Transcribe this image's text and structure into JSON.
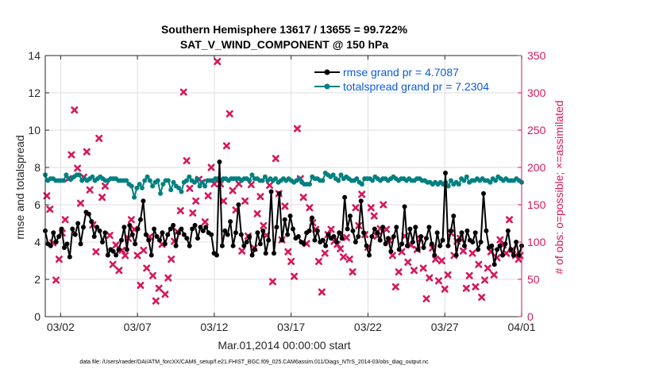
{
  "chart_data": {
    "type": "line",
    "title_line1": "Southern Hemisphere 13617 / 13655 = 99.722%",
    "title_line2": "SAT_V_WIND_COMPONENT @ 150 hPa",
    "xlabel": "Mar.01,2014 00:00:00 start",
    "ylabel": "rmse and totalspread",
    "y2label": "# of obs: o=possible; ×=assimilated",
    "footer": "data file: /Users/raeder/DAI/ATM_forcXX/CAM6_setup/f.e21.FHIST_BGC.f09_025.CAM6assim.011/Diags_NTrS_2014-03/obs_diag_output.nc",
    "xlim": [
      1,
      32
    ],
    "ylim": [
      0,
      14
    ],
    "y2lim": [
      0,
      350
    ],
    "x_ticks": [
      {
        "x": 2,
        "label": "03/02"
      },
      {
        "x": 7,
        "label": "03/07"
      },
      {
        "x": 12,
        "label": "03/12"
      },
      {
        "x": 17,
        "label": "03/17"
      },
      {
        "x": 22,
        "label": "03/22"
      },
      {
        "x": 27,
        "label": "03/27"
      },
      {
        "x": 32,
        "label": "04/01"
      }
    ],
    "y_ticks": [
      0,
      2,
      4,
      6,
      8,
      10,
      12,
      14
    ],
    "y2_ticks": [
      0,
      50,
      100,
      150,
      200,
      250,
      300,
      350
    ],
    "colors": {
      "rmse": "#000000",
      "spread": "#008080",
      "obs": "#d6175c",
      "legend_text": "#0b5bdc",
      "grid": "#dedede"
    },
    "legend": {
      "placement": "top-right",
      "entries": [
        {
          "name": "rmse grand pr = 4.7087",
          "color": "#000000"
        },
        {
          "name": "totalspread grand pr = 7.2304",
          "color": "#008080"
        }
      ]
    },
    "series": [
      {
        "name": "rmse",
        "values": [
          4.6,
          3.9,
          3.8,
          4.5,
          4.0,
          4.3,
          4.7,
          3.7,
          3.9,
          3.2,
          4.7,
          4.4,
          5.0,
          3.9,
          4.8,
          5.6,
          5.5,
          5.1,
          4.3,
          4.8,
          4.6,
          4.0,
          4.5,
          3.3,
          3.6,
          3.5,
          3.3,
          3.6,
          4.1,
          4.8,
          3.6,
          4.9,
          4.4,
          3.9,
          4.7,
          5.2,
          6.2,
          4.4,
          4.1,
          3.3,
          4.7,
          4.3,
          4.1,
          4.5,
          3.9,
          4.4,
          4.7,
          4.9,
          3.8,
          4.5,
          4.7,
          4.4,
          4.2,
          3.8,
          4.7,
          4.9,
          4.2,
          4.8,
          4.6,
          4.8,
          4.5,
          4.4,
          3.4,
          3.3,
          8.3,
          3.8,
          4.6,
          4.4,
          5.1,
          3.8,
          4.5,
          6.0,
          4.4,
          3.8,
          4.0,
          4.3,
          3.3,
          3.6,
          4.5,
          3.9,
          4.6,
          3.4,
          4.1,
          6.7,
          3.4,
          4.8,
          6.6,
          4.1,
          5.2,
          4.4,
          5.4,
          4.7,
          4.2,
          4.3,
          4.0,
          3.9,
          4.5,
          4.6,
          5.3,
          4.1,
          4.6,
          4.0,
          4.1,
          3.8,
          4.4,
          4.2,
          4.3,
          4.0,
          4.5,
          4.2,
          6.4,
          4.7,
          5.4,
          4.6,
          4.0,
          4.3,
          6.2,
          4.5,
          3.8,
          3.3,
          4.3,
          4.7,
          4.5,
          4.1,
          4.8,
          3.9,
          4.2,
          3.5,
          4.3,
          4.8,
          3.6,
          3.9,
          5.9,
          3.8,
          4.7,
          4.0,
          4.8,
          3.6,
          4.3,
          3.7,
          4.2,
          4.8,
          3.9,
          3.3,
          4.5,
          3.8,
          4.1,
          7.7,
          3.8,
          4.6,
          5.4,
          3.3,
          4.1,
          4.5,
          3.8,
          4.6,
          4.1,
          4.0,
          4.5,
          3.6,
          4.0,
          6.6,
          4.6,
          3.7,
          3.8,
          2.8,
          3.6,
          3.8,
          3.3,
          3.9,
          4.6,
          3.6,
          3.3,
          4.0,
          3.3,
          3.8
        ]
      },
      {
        "name": "totalspread",
        "values": [
          7.6,
          7.3,
          7.4,
          7.4,
          7.3,
          7.3,
          7.3,
          7.3,
          7.6,
          7.4,
          7.4,
          7.5,
          7.6,
          7.6,
          7.3,
          7.4,
          7.3,
          7.4,
          7.5,
          7.3,
          7.4,
          7.5,
          7.4,
          7.3,
          7.3,
          7.4,
          7.4,
          7.4,
          7.3,
          7.3,
          7.3,
          7.3,
          7.1,
          7.0,
          6.4,
          6.9,
          7.1,
          6.9,
          7.3,
          7.5,
          7.3,
          7.0,
          7.2,
          7.3,
          6.6,
          7.1,
          7.3,
          7.3,
          6.8,
          7.2,
          7.0,
          6.9,
          6.7,
          7.2,
          7.3,
          7.5,
          7.3,
          7.2,
          7.4,
          7.0,
          7.2,
          7.0,
          7.3,
          7.3,
          7.3,
          7.4,
          7.4,
          7.3,
          7.4,
          7.4,
          7.3,
          7.4,
          7.4,
          7.4,
          7.4,
          7.3,
          7.4,
          7.4,
          7.3,
          7.6,
          7.4,
          7.4,
          7.3,
          7.3,
          7.5,
          7.3,
          7.4,
          7.3,
          7.4,
          7.2,
          7.3,
          7.4,
          7.3,
          7.4,
          7.3,
          7.2,
          7.3,
          7.4,
          7.2,
          7.1,
          7.1,
          7.1,
          7.5,
          7.4,
          7.4,
          7.3,
          7.3,
          7.7,
          7.6,
          7.5,
          7.6,
          7.4,
          7.3,
          7.6,
          7.4,
          7.5,
          7.4,
          7.3,
          7.3,
          7.4,
          7.2,
          7.1,
          7.4,
          7.4,
          7.4,
          7.3,
          7.5,
          7.4,
          7.3,
          7.4,
          7.4,
          7.3,
          7.4,
          7.5,
          7.4,
          7.3,
          7.4,
          7.4,
          7.3,
          7.4,
          7.3,
          7.3,
          7.4,
          7.4,
          7.3,
          7.3,
          7.2,
          7.2,
          7.1,
          7.2,
          7.1,
          7.2,
          7.1,
          7.2,
          7.0,
          7.3,
          7.1,
          7.2,
          7.1,
          7.4,
          7.3,
          7.5,
          7.2,
          7.3,
          7.3,
          7.4,
          7.3,
          7.4,
          7.3,
          7.3,
          7.2,
          7.4,
          7.3,
          7.5,
          7.4,
          7.3,
          7.4,
          7.3,
          7.3,
          7.3,
          7.4,
          7.3,
          7.2
        ]
      },
      {
        "name": "obs_assimilated",
        "axis": "right",
        "points": [
          [
            1.1,
            162
          ],
          [
            1.3,
            144
          ],
          [
            1.5,
            99
          ],
          [
            1.7,
            49
          ],
          [
            1.9,
            77
          ],
          [
            2.1,
            112
          ],
          [
            2.3,
            130
          ],
          [
            2.5,
            185
          ],
          [
            2.7,
            217
          ],
          [
            2.9,
            277
          ],
          [
            3.1,
            199
          ],
          [
            3.3,
            152
          ],
          [
            3.5,
            187
          ],
          [
            3.7,
            221
          ],
          [
            3.9,
            170
          ],
          [
            4.1,
            123
          ],
          [
            4.3,
            87
          ],
          [
            4.5,
            239
          ],
          [
            4.7,
            160
          ],
          [
            4.9,
            175
          ],
          [
            5.2,
            109
          ],
          [
            5.4,
            70
          ],
          [
            5.6,
            96
          ],
          [
            5.8,
            62
          ],
          [
            6.0,
            89
          ],
          [
            6.2,
            82
          ],
          [
            6.4,
            105
          ],
          [
            6.6,
            130
          ],
          [
            6.8,
            117
          ],
          [
            7.0,
            82
          ],
          [
            7.2,
            42
          ],
          [
            7.4,
            89
          ],
          [
            7.6,
            65
          ],
          [
            7.8,
            107
          ],
          [
            8.0,
            55
          ],
          [
            8.2,
            21
          ],
          [
            8.4,
            38
          ],
          [
            8.6,
            97
          ],
          [
            8.8,
            30
          ],
          [
            9.0,
            52
          ],
          [
            9.2,
            77
          ],
          [
            9.4,
            101
          ],
          [
            9.6,
            114
          ],
          [
            9.8,
            142
          ],
          [
            10.0,
            301
          ],
          [
            10.2,
            209
          ],
          [
            10.4,
            172
          ],
          [
            10.6,
            139
          ],
          [
            10.8,
            155
          ],
          [
            11.0,
            184
          ],
          [
            11.2,
            180
          ],
          [
            11.4,
            127
          ],
          [
            11.6,
            162
          ],
          [
            11.8,
            200
          ],
          [
            12.0,
            178
          ],
          [
            12.2,
            342
          ],
          [
            12.4,
            178
          ],
          [
            12.6,
            155
          ],
          [
            12.8,
            229
          ],
          [
            13.0,
            272
          ],
          [
            13.2,
            169
          ],
          [
            13.4,
            143
          ],
          [
            13.6,
            178
          ],
          [
            13.8,
            88
          ],
          [
            14.0,
            155
          ],
          [
            14.2,
            108
          ],
          [
            14.4,
            177
          ],
          [
            14.6,
            92
          ],
          [
            14.8,
            138
          ],
          [
            15.0,
            161
          ],
          [
            15.2,
            122
          ],
          [
            15.4,
            109
          ],
          [
            15.6,
            176
          ],
          [
            15.8,
            47
          ],
          [
            16.0,
            212
          ],
          [
            16.2,
            165
          ],
          [
            16.4,
            103
          ],
          [
            16.6,
            148
          ],
          [
            16.8,
            87
          ],
          [
            17.0,
            74
          ],
          [
            17.2,
            54
          ],
          [
            17.4,
            252
          ],
          [
            17.6,
            185
          ],
          [
            17.8,
            160
          ],
          [
            18.0,
            98
          ],
          [
            18.2,
            146
          ],
          [
            18.4,
            126
          ],
          [
            18.6,
            117
          ],
          [
            18.8,
            74
          ],
          [
            19.0,
            33
          ],
          [
            19.2,
            85
          ],
          [
            19.4,
            110
          ],
          [
            19.6,
            117
          ],
          [
            19.8,
            101
          ],
          [
            20.0,
            97
          ],
          [
            20.2,
            91
          ],
          [
            20.4,
            80
          ],
          [
            20.6,
            106
          ],
          [
            20.8,
            77
          ],
          [
            21.0,
            60
          ],
          [
            21.2,
            146
          ],
          [
            21.4,
            122
          ],
          [
            21.6,
            164
          ],
          [
            21.8,
            110
          ],
          [
            22.0,
            93
          ],
          [
            22.2,
            146
          ],
          [
            22.4,
            135
          ],
          [
            22.6,
            108
          ],
          [
            22.8,
            118
          ],
          [
            23.0,
            150
          ],
          [
            23.2,
            117
          ],
          [
            23.4,
            102
          ],
          [
            23.6,
            82
          ],
          [
            23.8,
            40
          ],
          [
            24.0,
            60
          ],
          [
            24.2,
            87
          ],
          [
            24.4,
            108
          ],
          [
            24.6,
            73
          ],
          [
            24.8,
            96
          ],
          [
            25.0,
            62
          ],
          [
            25.2,
            90
          ],
          [
            25.4,
            104
          ],
          [
            25.6,
            65
          ],
          [
            25.8,
            24
          ],
          [
            26.0,
            52
          ],
          [
            26.2,
            92
          ],
          [
            26.4,
            77
          ],
          [
            26.6,
            48
          ],
          [
            26.8,
            75
          ],
          [
            27.0,
            37
          ],
          [
            27.2,
            56
          ],
          [
            27.4,
            112
          ],
          [
            27.6,
            82
          ],
          [
            27.8,
            101
          ],
          [
            28.0,
            105
          ],
          [
            28.2,
            88
          ],
          [
            28.4,
            38
          ],
          [
            28.6,
            55
          ],
          [
            28.8,
            85
          ],
          [
            29.0,
            40
          ],
          [
            29.2,
            70
          ],
          [
            29.4,
            26
          ],
          [
            29.6,
            49
          ],
          [
            29.8,
            65
          ],
          [
            30.0,
            87
          ],
          [
            30.2,
            56
          ],
          [
            30.4,
            79
          ],
          [
            30.6,
            103
          ],
          [
            30.8,
            96
          ],
          [
            31.0,
            85
          ],
          [
            31.2,
            130
          ],
          [
            31.4,
            90
          ],
          [
            31.6,
            82
          ],
          [
            31.8,
            77
          ],
          [
            31.9,
            82
          ]
        ]
      }
    ]
  }
}
